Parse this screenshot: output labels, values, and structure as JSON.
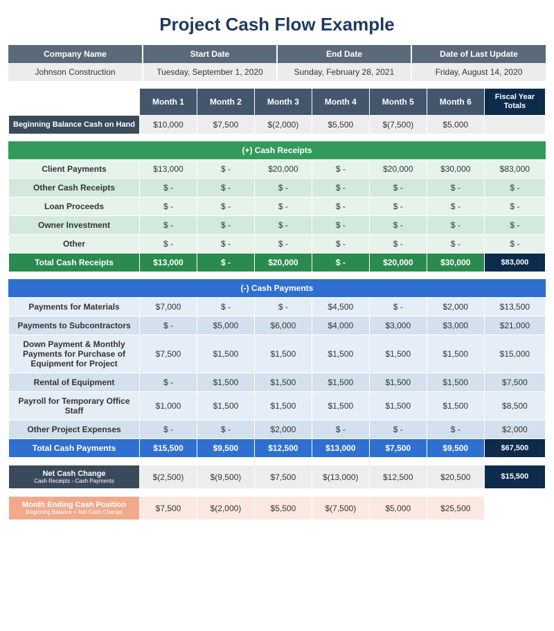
{
  "title": "Project Cash Flow Example",
  "meta": {
    "headers": [
      "Company Name",
      "Start Date",
      "End Date",
      "Date of Last Update"
    ],
    "values": [
      "Johnson Construction",
      "Tuesday, September 1, 2020",
      "Sunday, February 28, 2021",
      "Friday, August 14, 2020"
    ]
  },
  "month_headers": [
    "Month 1",
    "Month 2",
    "Month 3",
    "Month 4",
    "Month 5",
    "Month 6"
  ],
  "fy_label": "Fiscal Year Totals",
  "beginning": {
    "label": "Beginning Balance Cash on Hand",
    "values": [
      "$10,000",
      "$7,500",
      "$(2,000)",
      "$5,500",
      "$(7,500)",
      "$5,000"
    ],
    "fy": ""
  },
  "receipts": {
    "section_label": "(+) Cash Receipts",
    "rows": [
      {
        "label": "Client Payments",
        "values": [
          "$13,000",
          "$ -",
          "$20,000",
          "$ -",
          "$20,000",
          "$30,000"
        ],
        "fy": "$83,000"
      },
      {
        "label": "Other Cash Receipts",
        "values": [
          "$ -",
          "$ -",
          "$ -",
          "$ -",
          "$ -",
          "$ -"
        ],
        "fy": "$ -"
      },
      {
        "label": "Loan Proceeds",
        "values": [
          "$ -",
          "$ -",
          "$ -",
          "$ -",
          "$ -",
          "$ -"
        ],
        "fy": "$ -"
      },
      {
        "label": "Owner Investment",
        "values": [
          "$ -",
          "$ -",
          "$ -",
          "$ -",
          "$ -",
          "$ -"
        ],
        "fy": "$ -"
      },
      {
        "label": "Other",
        "values": [
          "$ -",
          "$ -",
          "$ -",
          "$ -",
          "$ -",
          "$ -"
        ],
        "fy": "$ -"
      }
    ],
    "total": {
      "label": "Total Cash Receipts",
      "values": [
        "$13,000",
        "$ -",
        "$20,000",
        "$ -",
        "$20,000",
        "$30,000"
      ],
      "fy": "$83,000"
    }
  },
  "payments": {
    "section_label": "(-) Cash Payments",
    "rows": [
      {
        "label": "Payments for Materials",
        "values": [
          "$7,000",
          "$ -",
          "$ -",
          "$4,500",
          "$ -",
          "$2,000"
        ],
        "fy": "$13,500"
      },
      {
        "label": "Payments to Subcontractors",
        "values": [
          "$ -",
          "$5,000",
          "$6,000",
          "$4,000",
          "$3,000",
          "$3,000"
        ],
        "fy": "$21,000"
      },
      {
        "label": "Down Payment & Monthly Payments for Purchase of Equipment for Project",
        "values": [
          "$7,500",
          "$1,500",
          "$1,500",
          "$1,500",
          "$1,500",
          "$1,500"
        ],
        "fy": "$15,000"
      },
      {
        "label": "Rental of Equipment",
        "values": [
          "$ -",
          "$1,500",
          "$1,500",
          "$1,500",
          "$1,500",
          "$1,500"
        ],
        "fy": "$7,500"
      },
      {
        "label": "Payroll for Temporary Office Staff",
        "values": [
          "$1,000",
          "$1,500",
          "$1,500",
          "$1,500",
          "$1,500",
          "$1,500"
        ],
        "fy": "$8,500"
      },
      {
        "label": "Other Project Expenses",
        "values": [
          "$ -",
          "$ -",
          "$2,000",
          "$ -",
          "$ -",
          "$ -"
        ],
        "fy": "$2,000"
      }
    ],
    "total": {
      "label": "Total Cash Payments",
      "values": [
        "$15,500",
        "$9,500",
        "$12,500",
        "$13,000",
        "$7,500",
        "$9,500"
      ],
      "fy": "$67,500"
    }
  },
  "net": {
    "label": "Net Cash Change",
    "sub": "Cash Receipts - Cash Payments",
    "values": [
      "$(2,500)",
      "$(9,500)",
      "$7,500",
      "$(13,000)",
      "$12,500",
      "$20,500"
    ],
    "fy": "$15,500"
  },
  "ending": {
    "label": "Month Ending Cash Position",
    "sub": "Beginning Balance + Net Cash Change",
    "values": [
      "$7,500",
      "$(2,000)",
      "$5,500",
      "$(7,500)",
      "$5,000",
      "$25,500"
    ],
    "fy": ""
  }
}
